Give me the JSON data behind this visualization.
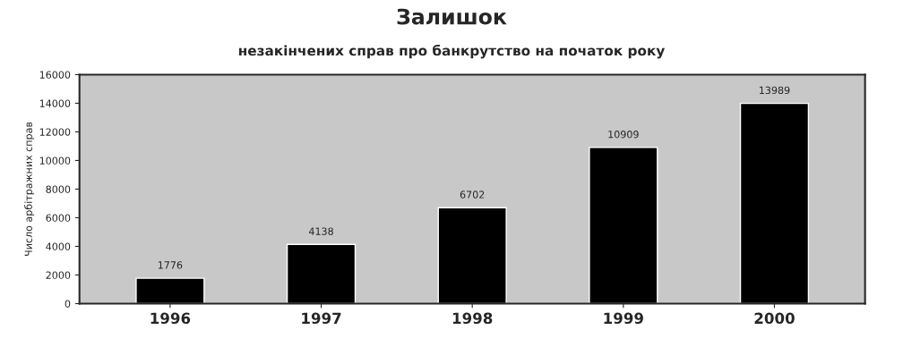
{
  "chart_data": {
    "type": "bar",
    "title": "Залишок",
    "subtitle": "незакінчених справ про банкрутство на початок року",
    "ylabel": "Число арбітражних справ",
    "categories": [
      "1996",
      "1997",
      "1998",
      "1999",
      "2000"
    ],
    "values": [
      1776,
      4138,
      6702,
      10909,
      13989
    ],
    "color": "#000000",
    "ylim": [
      0,
      16000
    ],
    "yticks": [
      0,
      2000,
      4000,
      6000,
      8000,
      10000,
      12000,
      14000,
      16000
    ],
    "data_labels": true
  }
}
